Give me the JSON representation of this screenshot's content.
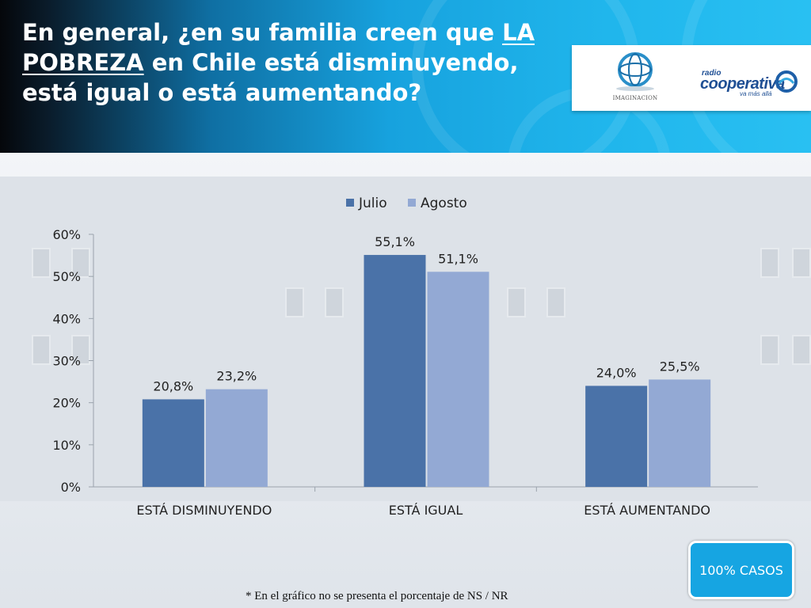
{
  "header": {
    "title_part1": "En general, ¿en su familia creen que ",
    "title_underlined": "LA POBREZA",
    "title_part2": " en Chile está disminuyendo, está igual o está aumentando?"
  },
  "logos": {
    "imaginacion_text": "IMAGINACION",
    "radio_text": "radio",
    "cooperativa_text": "cooperativa",
    "tagline": "va más allá"
  },
  "badge": {
    "label": "100% CASOS"
  },
  "footnote": {
    "text": "* En el gráfico no se presenta el porcentaje de NS / NR"
  },
  "colors": {
    "julio": "#4a72a8",
    "agosto": "#93a9d4",
    "accent": "#16a5e2"
  },
  "chart_data": {
    "type": "bar",
    "categories": [
      "ESTÁ DISMINUYENDO",
      "ESTÁ IGUAL",
      "ESTÁ AUMENTANDO"
    ],
    "series": [
      {
        "name": "Julio",
        "values": [
          20.8,
          55.1,
          24.0
        ],
        "labels": [
          "20,8%",
          "55,1%",
          "24,0%"
        ]
      },
      {
        "name": "Agosto",
        "values": [
          23.2,
          51.1,
          25.5
        ],
        "labels": [
          "23,2%",
          "51,1%",
          "25,5%"
        ]
      }
    ],
    "yticks": [
      "0%",
      "10%",
      "20%",
      "30%",
      "40%",
      "50%",
      "60%"
    ],
    "ylim": [
      0,
      60
    ],
    "legend": "top-center",
    "grid": false
  }
}
